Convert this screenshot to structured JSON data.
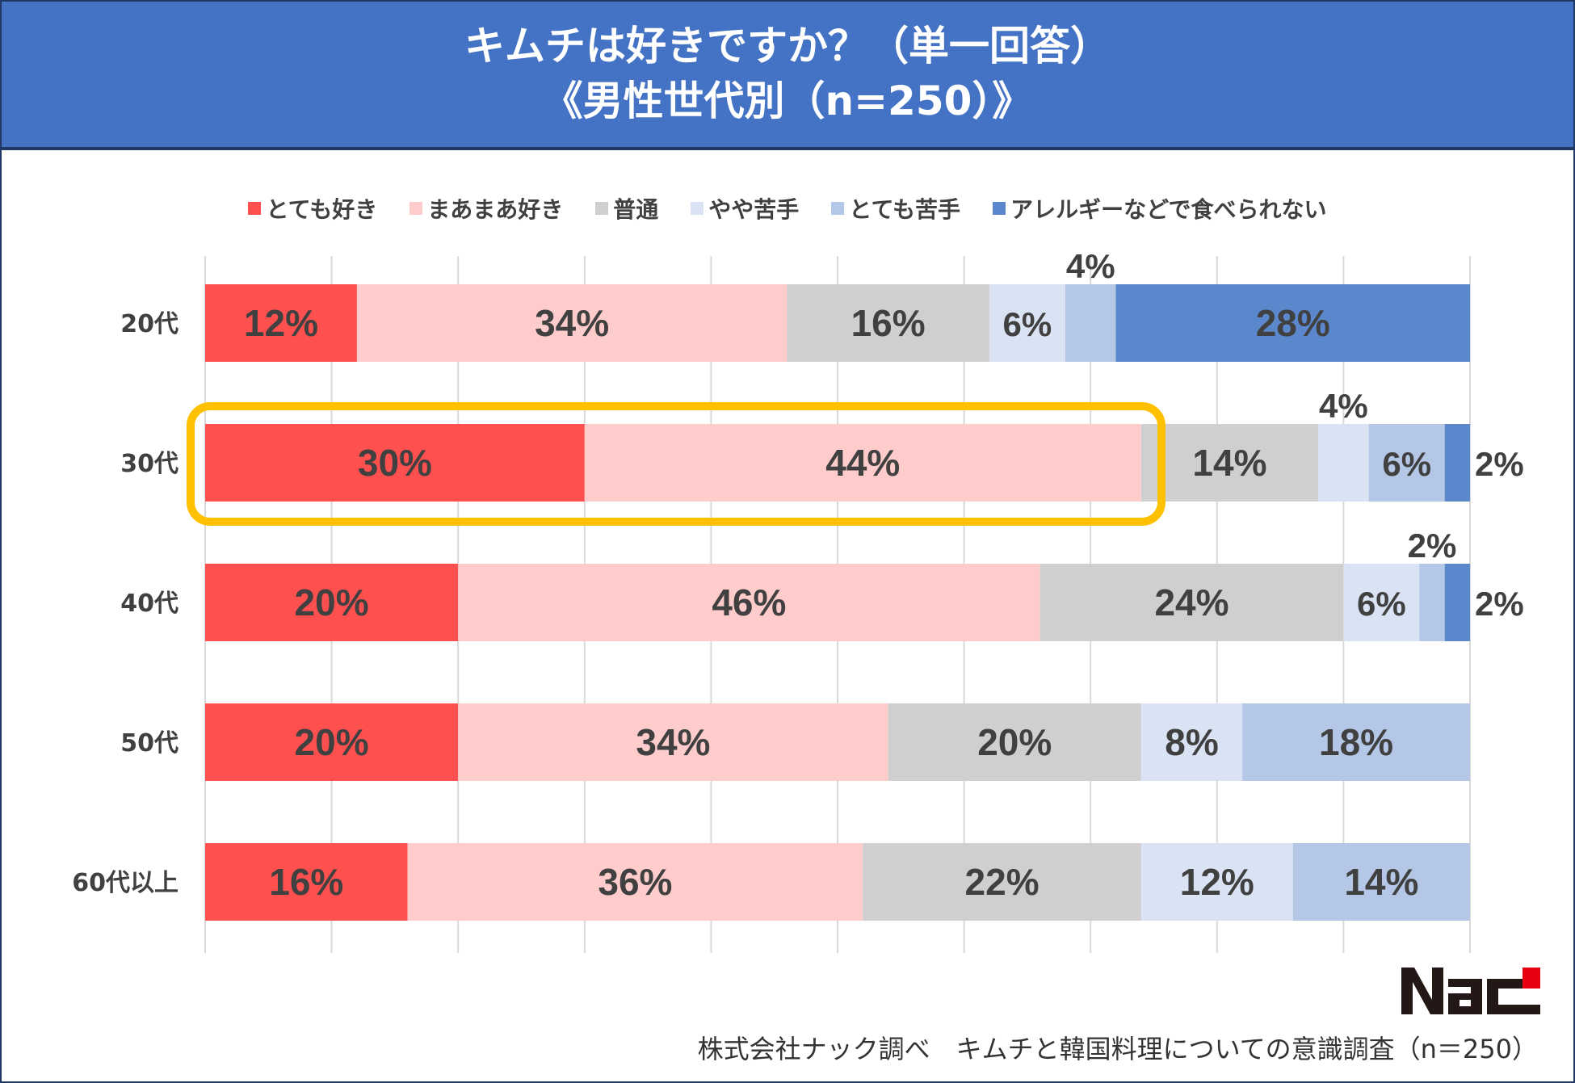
{
  "header": {
    "title_line1": "キムチは好きですか？（単一回答）",
    "title_line2": "《男性世代別（n=250）》"
  },
  "chart_data": {
    "type": "bar",
    "orientation": "horizontal-stacked-100",
    "title": "キムチは好きですか？（単一回答） 《男性世代別（n=250）》",
    "categories": [
      "20代",
      "30代",
      "40代",
      "50代",
      "60代以上"
    ],
    "series": [
      {
        "name": "とても好き",
        "color": "#FF5050",
        "values": [
          12,
          30,
          20,
          20,
          16
        ]
      },
      {
        "name": "まあまあ好き",
        "color": "#FFCCCC",
        "values": [
          34,
          44,
          46,
          34,
          36
        ]
      },
      {
        "name": "普通",
        "color": "#D0CECE",
        "values": [
          16,
          14,
          24,
          20,
          22
        ]
      },
      {
        "name": "やや苦手",
        "color": "#DAE3F3",
        "values": [
          6,
          4,
          6,
          8,
          12
        ]
      },
      {
        "name": "とても苦手",
        "color": "#B4C7E7",
        "values": [
          4,
          6,
          2,
          18,
          14
        ]
      },
      {
        "name": "アレルギーなどで食べられない",
        "color": "#5B87CC",
        "values": [
          28,
          2,
          2,
          0,
          0
        ]
      }
    ],
    "xlim": [
      0,
      100
    ],
    "grid": true,
    "legend": "top",
    "highlight": {
      "category": "30代",
      "series": [
        "とても好き",
        "まあまあ好き"
      ],
      "color": "#FFC000"
    }
  },
  "footer": {
    "source": "株式会社ナック調べ　キムチと韓国料理についての意識調査（n＝250）"
  },
  "logo": {
    "text": "Nac"
  }
}
